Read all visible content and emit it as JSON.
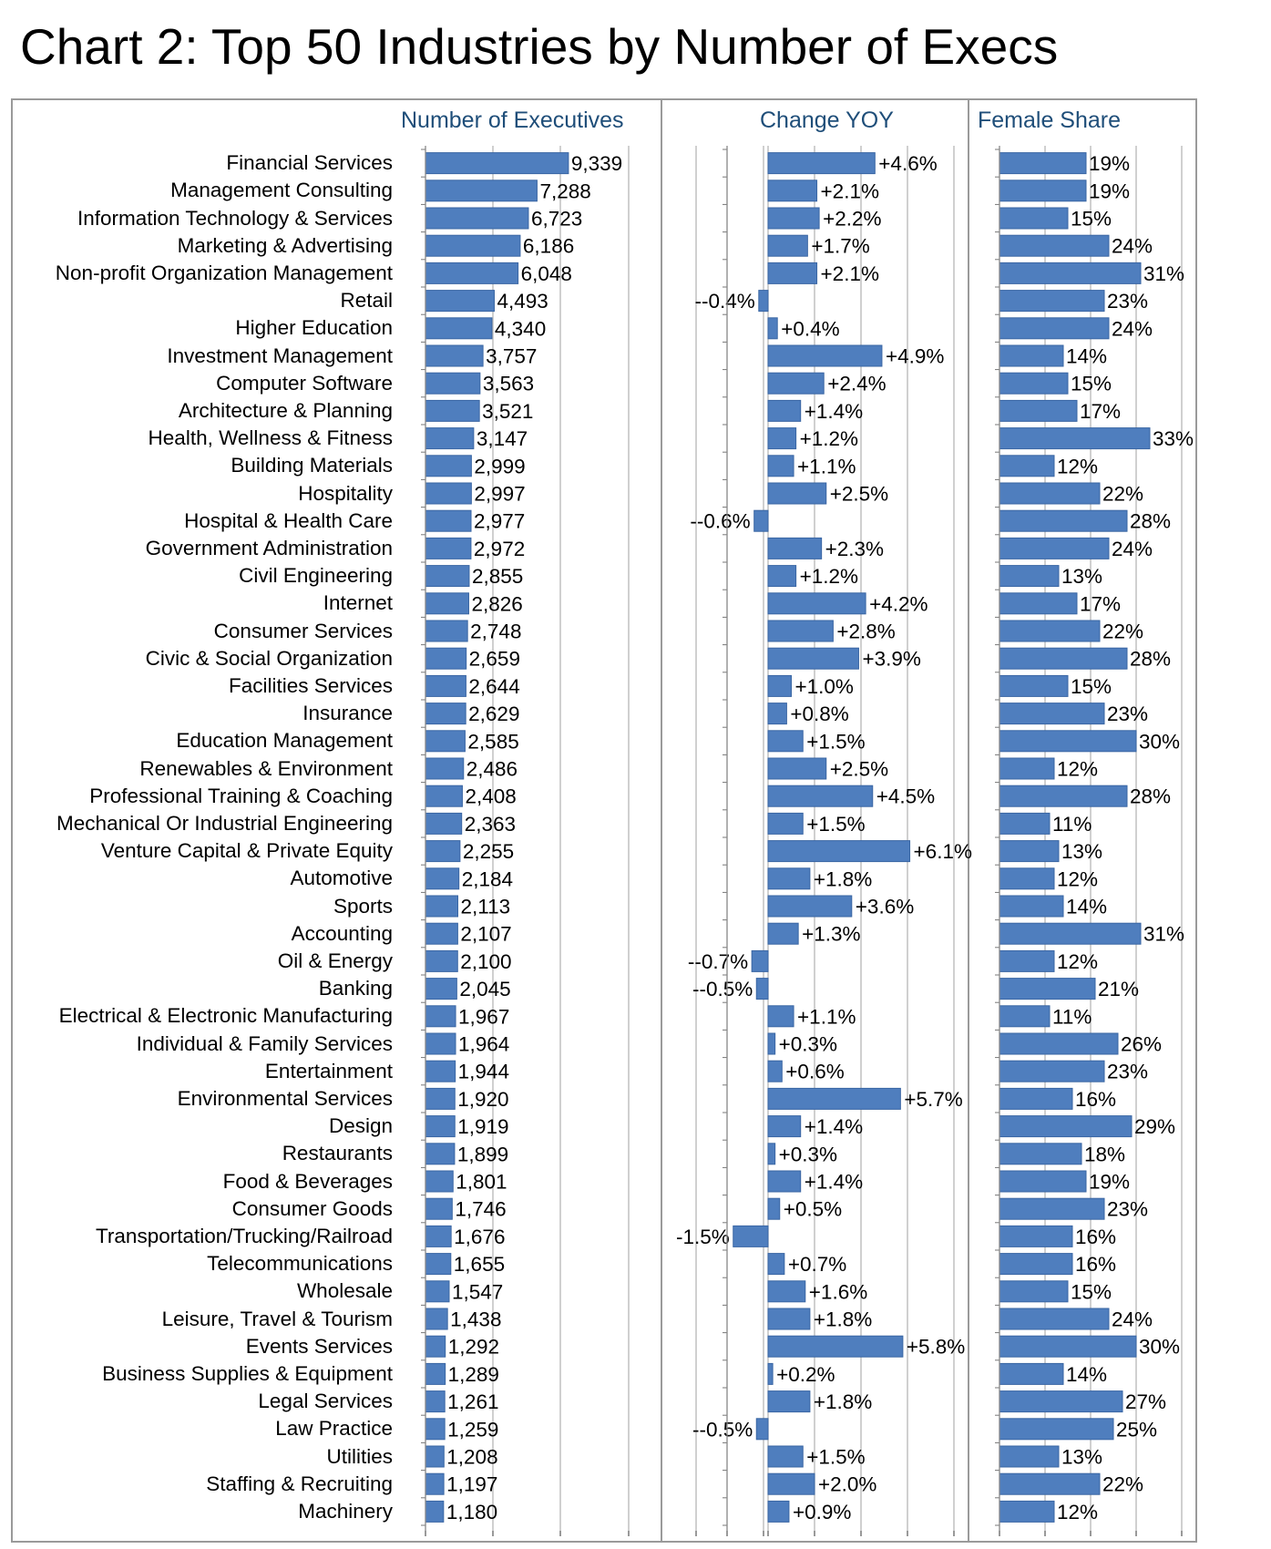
{
  "title": "Chart 2: Top 50 Industries by Number of Execs",
  "panels": {
    "count": "Number of Executives",
    "change": "Change YOY",
    "female": "Female Share"
  },
  "colors": {
    "bar": "#4f7ebe",
    "bar_edge": "#3a66a3",
    "grid": "#b0b0b0",
    "frame": "#9a9a9a",
    "header": "#1f4e79"
  },
  "chart_data": {
    "type": "bar",
    "orientation": "horizontal",
    "categories": [
      "Financial Services",
      "Management Consulting",
      "Information Technology & Services",
      "Marketing & Advertising",
      "Non-profit Organization Management",
      "Retail",
      "Higher Education",
      "Investment Management",
      "Computer Software",
      "Architecture & Planning",
      "Health, Wellness & Fitness",
      "Building Materials",
      "Hospitality",
      "Hospital & Health Care",
      "Government Administration",
      "Civil Engineering",
      "Internet",
      "Consumer Services",
      "Civic & Social Organization",
      "Facilities Services",
      "Insurance",
      "Education Management",
      "Renewables & Environment",
      "Professional Training & Coaching",
      "Mechanical Or Industrial Engineering",
      "Venture Capital & Private Equity",
      "Automotive",
      "Sports",
      "Accounting",
      "Oil & Energy",
      "Banking",
      "Electrical & Electronic Manufacturing",
      "Individual & Family Services",
      "Entertainment",
      "Environmental Services",
      "Design",
      "Restaurants",
      "Food & Beverages",
      "Consumer Goods",
      "Transportation/Trucking/Railroad",
      "Telecommunications",
      "Wholesale",
      "Leisure, Travel & Tourism",
      "Events Services",
      "Business Supplies & Equipment",
      "Legal Services",
      "Law Practice",
      "Utilities",
      "Staffing & Recruiting",
      "Machinery"
    ],
    "series": [
      {
        "name": "Number of Executives",
        "values": [
          9339,
          7288,
          6723,
          6186,
          6048,
          4493,
          4340,
          3757,
          3563,
          3521,
          3147,
          2999,
          2997,
          2977,
          2972,
          2855,
          2826,
          2748,
          2659,
          2644,
          2629,
          2585,
          2486,
          2408,
          2363,
          2255,
          2184,
          2113,
          2107,
          2100,
          2045,
          1967,
          1964,
          1944,
          1920,
          1919,
          1899,
          1801,
          1746,
          1676,
          1655,
          1547,
          1438,
          1292,
          1289,
          1261,
          1259,
          1208,
          1197,
          1180
        ],
        "labels": [
          "9,339",
          "7,288",
          "6,723",
          "6,186",
          "6,048",
          "4,493",
          "4,340",
          "3,757",
          "3,563",
          "3,521",
          "3,147",
          "2,999",
          "2,997",
          "2,977",
          "2,972",
          "2,855",
          "2,826",
          "2,748",
          "2,659",
          "2,644",
          "2,629",
          "2,585",
          "2,486",
          "2,408",
          "2,363",
          "2,255",
          "2,184",
          "2,113",
          "2,107",
          "2,100",
          "2,045",
          "1,967",
          "1,964",
          "1,944",
          "1,920",
          "1,919",
          "1,899",
          "1,801",
          "1,746",
          "1,676",
          "1,655",
          "1,547",
          "1,438",
          "1,292",
          "1,289",
          "1,261",
          "1,259",
          "1,208",
          "1,197",
          "1,180"
        ],
        "xlim": [
          0,
          10000
        ]
      },
      {
        "name": "Change YOY",
        "values": [
          4.6,
          2.1,
          2.2,
          1.7,
          2.1,
          -0.4,
          0.4,
          4.9,
          2.4,
          1.4,
          1.2,
          1.1,
          2.5,
          -0.6,
          2.3,
          1.2,
          4.2,
          2.8,
          3.9,
          1.0,
          0.8,
          1.5,
          2.5,
          4.5,
          1.5,
          6.1,
          1.8,
          3.6,
          1.3,
          -0.7,
          -0.5,
          1.1,
          0.3,
          0.6,
          5.7,
          1.4,
          0.3,
          1.4,
          0.5,
          -1.5,
          0.7,
          1.6,
          1.8,
          5.8,
          0.2,
          1.8,
          -0.5,
          1.5,
          2.0,
          0.9
        ],
        "labels": [
          "+4.6%",
          "+2.1%",
          "+2.2%",
          "+1.7%",
          "+2.1%",
          "--0.4%",
          "+0.4%",
          "+4.9%",
          "+2.4%",
          "+1.4%",
          "+1.2%",
          "+1.1%",
          "+2.5%",
          "--0.6%",
          "+2.3%",
          "+1.2%",
          "+4.2%",
          "+2.8%",
          "+3.9%",
          "+1.0%",
          "+0.8%",
          "+1.5%",
          "+2.5%",
          "+4.5%",
          "+1.5%",
          "+6.1%",
          "+1.8%",
          "+3.6%",
          "+1.3%",
          "--0.7%",
          "--0.5%",
          "+1.1%",
          "+0.3%",
          "+0.6%",
          "+5.7%",
          "+1.4%",
          "+0.3%",
          "+1.4%",
          "+0.5%",
          "-1.5%",
          "+0.7%",
          "+1.6%",
          "+1.8%",
          "+5.8%",
          "+0.2%",
          "+1.8%",
          "--0.5%",
          "+1.5%",
          "+2.0%",
          "+0.9%"
        ],
        "xlim": [
          -2,
          8
        ]
      },
      {
        "name": "Female Share",
        "values": [
          19,
          19,
          15,
          24,
          31,
          23,
          24,
          14,
          15,
          17,
          33,
          12,
          22,
          28,
          24,
          13,
          17,
          22,
          28,
          15,
          23,
          30,
          12,
          28,
          11,
          13,
          12,
          14,
          31,
          12,
          21,
          11,
          26,
          23,
          16,
          29,
          18,
          19,
          23,
          16,
          16,
          15,
          24,
          30,
          14,
          27,
          25,
          13,
          22,
          12
        ],
        "labels": [
          "19%",
          "19%",
          "15%",
          "24%",
          "31%",
          "23%",
          "24%",
          "14%",
          "15%",
          "17%",
          "33%",
          "12%",
          "22%",
          "28%",
          "24%",
          "13%",
          "17%",
          "22%",
          "28%",
          "15%",
          "23%",
          "30%",
          "12%",
          "28%",
          "11%",
          "13%",
          "12%",
          "14%",
          "31%",
          "12%",
          "21%",
          "11%",
          "26%",
          "23%",
          "16%",
          "29%",
          "18%",
          "19%",
          "23%",
          "16%",
          "16%",
          "15%",
          "24%",
          "30%",
          "14%",
          "27%",
          "25%",
          "13%",
          "22%",
          "12%"
        ],
        "xlim": [
          0,
          40
        ]
      }
    ],
    "grid": true
  }
}
